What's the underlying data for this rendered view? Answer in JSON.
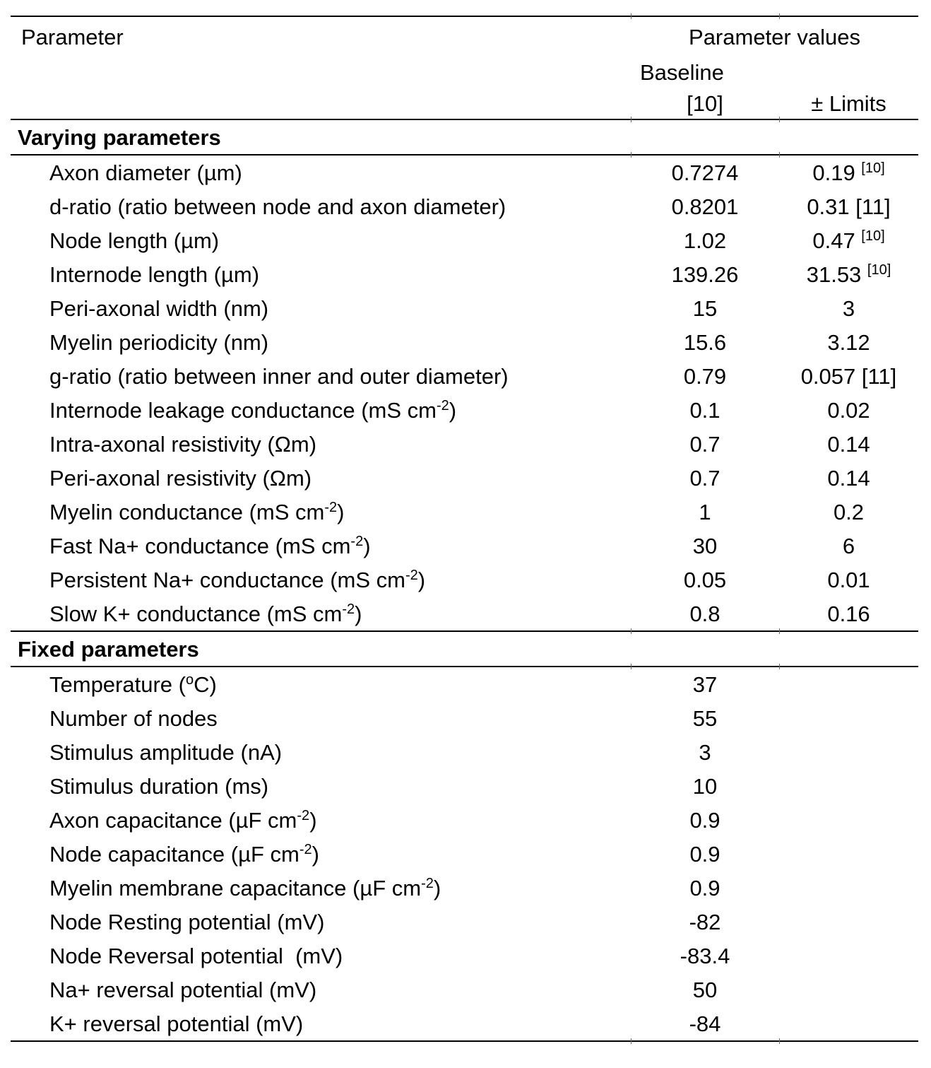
{
  "page": {
    "background": "#ffffff",
    "text_color": "#000000",
    "rule_color": "#000000"
  },
  "table": {
    "header": {
      "parameter_col": "Parameter",
      "values_group": "Parameter values",
      "baseline_label": "Baseline",
      "baseline_ref": "[10]",
      "limits_label": "± Limits"
    },
    "sections": [
      {
        "title": "Varying parameters",
        "rows": [
          {
            "label": [
              {
                "t": "Axon diameter (µm)"
              }
            ],
            "baseline": "0.7274",
            "limits": [
              {
                "t": "0.19 "
              },
              {
                "t": "[10]",
                "sup": true
              }
            ]
          },
          {
            "label": [
              {
                "t": "d-ratio (ratio between node and axon diameter)"
              }
            ],
            "baseline": "0.8201",
            "limits": [
              {
                "t": "0.31 [11]"
              }
            ]
          },
          {
            "label": [
              {
                "t": "Node length (µm)"
              }
            ],
            "baseline": "1.02",
            "limits": [
              {
                "t": "0.47 "
              },
              {
                "t": "[10]",
                "sup": true
              }
            ]
          },
          {
            "label": [
              {
                "t": "Internode length (µm)"
              }
            ],
            "baseline": "139.26",
            "limits": [
              {
                "t": "31.53 "
              },
              {
                "t": "[10]",
                "sup": true
              }
            ]
          },
          {
            "label": [
              {
                "t": "Peri-axonal width (nm)"
              }
            ],
            "baseline": "15",
            "limits": [
              {
                "t": "3"
              }
            ]
          },
          {
            "label": [
              {
                "t": "Myelin periodicity (nm)"
              }
            ],
            "baseline": "15.6",
            "limits": [
              {
                "t": "3.12"
              }
            ]
          },
          {
            "label": [
              {
                "t": "g-ratio (ratio between inner and outer diameter)"
              }
            ],
            "baseline": "0.79",
            "limits": [
              {
                "t": "0.057 [11]"
              }
            ]
          },
          {
            "label": [
              {
                "t": "Internode leakage conductance (mS cm"
              },
              {
                "t": "-2",
                "sup": true
              },
              {
                "t": ")"
              }
            ],
            "baseline": "0.1",
            "limits": [
              {
                "t": "0.02"
              }
            ]
          },
          {
            "label": [
              {
                "t": "Intra-axonal resistivity (Ωm)"
              }
            ],
            "baseline": "0.7",
            "limits": [
              {
                "t": "0.14"
              }
            ]
          },
          {
            "label": [
              {
                "t": "Peri-axonal resistivity (Ωm)"
              }
            ],
            "baseline": "0.7",
            "limits": [
              {
                "t": "0.14"
              }
            ]
          },
          {
            "label": [
              {
                "t": "Myelin conductance (mS cm"
              },
              {
                "t": "-2",
                "sup": true
              },
              {
                "t": ")"
              }
            ],
            "baseline": "1",
            "limits": [
              {
                "t": "0.2"
              }
            ]
          },
          {
            "label": [
              {
                "t": "Fast Na+ conductance (mS cm"
              },
              {
                "t": "-2",
                "sup": true
              },
              {
                "t": ")"
              }
            ],
            "baseline": "30",
            "limits": [
              {
                "t": "6"
              }
            ]
          },
          {
            "label": [
              {
                "t": "Persistent Na+ conductance (mS cm"
              },
              {
                "t": "-2",
                "sup": true
              },
              {
                "t": ")"
              }
            ],
            "baseline": "0.05",
            "limits": [
              {
                "t": "0.01"
              }
            ]
          },
          {
            "label": [
              {
                "t": "Slow K+ conductance (mS cm"
              },
              {
                "t": "-2",
                "sup": true
              },
              {
                "t": ")"
              }
            ],
            "baseline": "0.8",
            "limits": [
              {
                "t": "0.16"
              }
            ]
          }
        ]
      },
      {
        "title": "Fixed parameters",
        "rows": [
          {
            "label": [
              {
                "t": "Temperature ("
              },
              {
                "t": "o",
                "sup": true
              },
              {
                "t": "C)"
              }
            ],
            "baseline": "37",
            "limits": []
          },
          {
            "label": [
              {
                "t": "Number of nodes"
              }
            ],
            "baseline": "55",
            "limits": []
          },
          {
            "label": [
              {
                "t": "Stimulus amplitude (nA)"
              }
            ],
            "baseline": "3",
            "limits": []
          },
          {
            "label": [
              {
                "t": "Stimulus duration (ms)"
              }
            ],
            "baseline": "10",
            "limits": []
          },
          {
            "label": [
              {
                "t": "Axon capacitance (µF cm"
              },
              {
                "t": "-2",
                "sup": true
              },
              {
                "t": ")"
              }
            ],
            "baseline": "0.9",
            "limits": []
          },
          {
            "label": [
              {
                "t": "Node capacitance (µF cm"
              },
              {
                "t": "-2",
                "sup": true
              },
              {
                "t": ")"
              }
            ],
            "baseline": "0.9",
            "limits": []
          },
          {
            "label": [
              {
                "t": "Myelin membrane capacitance (µF cm"
              },
              {
                "t": "-2",
                "sup": true
              },
              {
                "t": ")"
              }
            ],
            "baseline": "0.9",
            "limits": []
          },
          {
            "label": [
              {
                "t": "Node Resting potential (mV)"
              }
            ],
            "baseline": "-82",
            "limits": []
          },
          {
            "label": [
              {
                "t": "Node Reversal potential  (mV)"
              }
            ],
            "baseline": "-83.4",
            "limits": []
          },
          {
            "label": [
              {
                "t": "Na+ reversal potential (mV)"
              }
            ],
            "baseline": "50",
            "limits": []
          },
          {
            "label": [
              {
                "t": "K+ reversal potential (mV)"
              }
            ],
            "baseline": "-84",
            "limits": []
          }
        ]
      }
    ]
  }
}
